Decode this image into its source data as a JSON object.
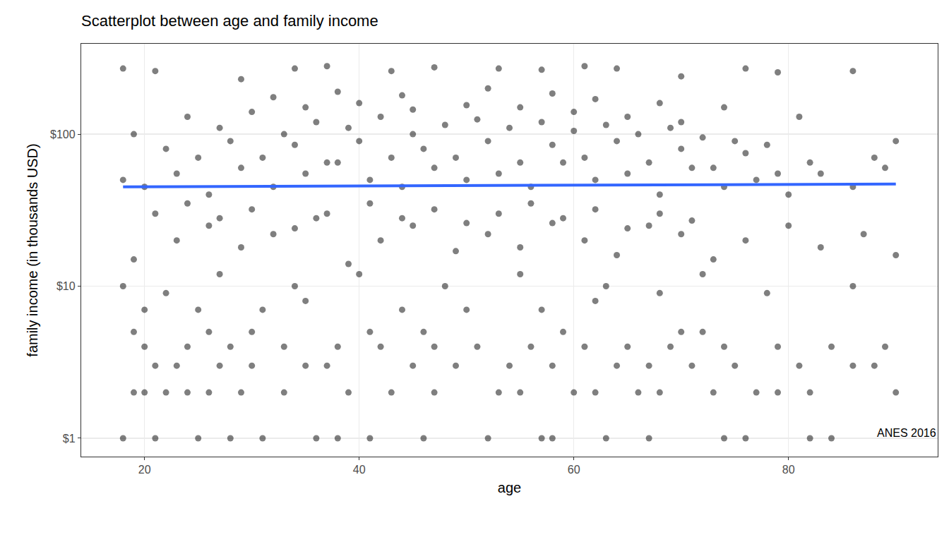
{
  "chart_data": {
    "type": "scatter",
    "title": "Scatterplot between age and family income",
    "x_label": "age",
    "y_label": "family income (in thousands USD)",
    "caption": "ANES 2016",
    "log": "y",
    "grid": true,
    "xlim": [
      14.1,
      93.9
    ],
    "xticks": [
      20,
      40,
      60,
      80
    ],
    "ylim": [
      0.757,
      393
    ],
    "yticks": [
      {
        "value": 1,
        "label": "$1"
      },
      {
        "value": 10,
        "label": "$10"
      },
      {
        "value": 100,
        "label": "$100"
      }
    ],
    "series": [
      {
        "type": "scatter",
        "color": "#000000",
        "marker": "circle",
        "x": [
          18,
          19,
          21,
          25,
          28,
          31,
          36,
          41,
          46,
          52,
          57,
          63,
          67,
          74,
          76,
          82,
          84,
          58,
          38,
          20,
          22,
          24,
          26,
          29,
          33,
          39,
          43,
          47,
          53,
          55,
          60,
          62,
          66,
          68,
          73,
          77,
          79,
          82,
          90,
          35,
          21,
          23,
          27,
          30,
          37,
          45,
          49,
          54,
          58,
          64,
          67,
          71,
          75,
          81,
          86,
          88,
          20,
          24,
          28,
          33,
          38,
          42,
          47,
          51,
          56,
          61,
          65,
          69,
          74,
          79,
          84,
          89,
          19,
          26,
          30,
          41,
          46,
          59,
          70,
          72,
          20,
          25,
          31,
          35,
          44,
          50,
          57,
          62,
          68,
          78,
          18,
          22,
          27,
          34,
          40,
          48,
          55,
          63,
          72,
          86,
          19,
          23,
          26,
          29,
          32,
          36,
          39,
          42,
          45,
          49,
          52,
          55,
          58,
          61,
          64,
          67,
          70,
          73,
          76,
          80,
          83,
          87,
          90,
          21,
          24,
          27,
          30,
          34,
          37,
          41,
          44,
          47,
          50,
          53,
          56,
          59,
          62,
          65,
          68,
          71,
          18,
          20,
          23,
          26,
          29,
          32,
          35,
          38,
          41,
          44,
          47,
          50,
          53,
          56,
          59,
          62,
          65,
          68,
          71,
          74,
          77,
          80,
          83,
          86,
          89,
          25,
          31,
          37,
          43,
          49,
          55,
          61,
          67,
          73,
          79,
          22,
          28,
          34,
          40,
          46,
          52,
          58,
          64,
          70,
          76,
          82,
          88,
          19,
          27,
          33,
          36,
          39,
          42,
          45,
          48,
          51,
          54,
          57,
          60,
          63,
          66,
          69,
          72,
          75,
          78,
          30,
          35,
          40,
          45,
          50,
          55,
          60,
          65,
          70,
          24,
          32,
          38,
          44,
          52,
          58,
          62,
          68,
          74,
          81,
          18,
          21,
          29,
          34,
          37,
          43,
          47,
          53,
          57,
          61,
          64,
          70,
          76,
          79,
          86,
          90
        ],
        "values": [
          1,
          2,
          1,
          1,
          1,
          1,
          1,
          1,
          1,
          1,
          1,
          1,
          1,
          1,
          1,
          1,
          1,
          1,
          1,
          2,
          2,
          2,
          2,
          2,
          2,
          2,
          2,
          2,
          2,
          2,
          2,
          2,
          2,
          2,
          2,
          2,
          2,
          2,
          2,
          3,
          3,
          3,
          3,
          3,
          3,
          3,
          3,
          3,
          3,
          3,
          3,
          3,
          3,
          3,
          3,
          3,
          4,
          4,
          4,
          4,
          4,
          4,
          4,
          4,
          4,
          4,
          4,
          4,
          4,
          4,
          4,
          4,
          5,
          5,
          5,
          5,
          5,
          5,
          5,
          5,
          7,
          7,
          7,
          8,
          7,
          7,
          7,
          8,
          9,
          9,
          10,
          9,
          12,
          10,
          12,
          10,
          12,
          10,
          12,
          10,
          15,
          20,
          25,
          18,
          22,
          28,
          14,
          20,
          25,
          17,
          22,
          18,
          26,
          20,
          16,
          25,
          22,
          15,
          20,
          25,
          18,
          22,
          16,
          30,
          35,
          28,
          32,
          24,
          30,
          35,
          28,
          32,
          26,
          30,
          35,
          28,
          32,
          24,
          30,
          27,
          50,
          45,
          55,
          40,
          60,
          45,
          55,
          65,
          50,
          45,
          60,
          50,
          55,
          45,
          65,
          50,
          55,
          40,
          60,
          45,
          50,
          40,
          55,
          45,
          60,
          70,
          70,
          65,
          70,
          70,
          65,
          70,
          65,
          60,
          55,
          80,
          90,
          85,
          90,
          80,
          90,
          85,
          90,
          80,
          75,
          65,
          70,
          100,
          110,
          100,
          120,
          110,
          130,
          100,
          115,
          125,
          110,
          120,
          105,
          115,
          100,
          110,
          95,
          90,
          85,
          140,
          150,
          160,
          145,
          155,
          150,
          140,
          130,
          120,
          130,
          175,
          190,
          180,
          200,
          185,
          170,
          160,
          150,
          130,
          270,
          260,
          230,
          270,
          280,
          260,
          275,
          270,
          265,
          280,
          270,
          240,
          270,
          255,
          260,
          90
        ]
      },
      {
        "type": "line",
        "color": "#3366FF",
        "line_style": "solid",
        "x": [
          18,
          90
        ],
        "values": [
          45,
          47
        ]
      }
    ]
  }
}
